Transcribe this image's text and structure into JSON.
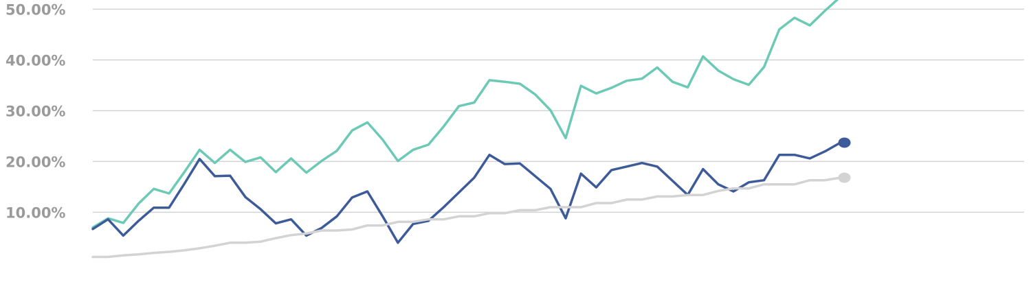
{
  "chart_data": {
    "type": "line",
    "title": "",
    "xlabel": "",
    "ylabel": "",
    "ylim": [
      -6.3,
      51.8
    ],
    "xlim": [
      0,
      61.5
    ],
    "grid": true,
    "y_ticks": [
      {
        "value": 10,
        "label": "10.00%"
      },
      {
        "value": 20,
        "label": "20.00%"
      },
      {
        "value": 30,
        "label": "30.00%"
      },
      {
        "value": 40,
        "label": "40.00%"
      },
      {
        "value": 50,
        "label": "50.00%"
      }
    ],
    "series": [
      {
        "color": "#6cc9b6",
        "end_marker": false,
        "points": [
          [
            0,
            7.0
          ],
          [
            1,
            8.8
          ],
          [
            2,
            7.9
          ],
          [
            3,
            11.7
          ],
          [
            4,
            14.6
          ],
          [
            5,
            13.7
          ],
          [
            6,
            17.9
          ],
          [
            7,
            22.3
          ],
          [
            8,
            19.7
          ],
          [
            9,
            22.3
          ],
          [
            10,
            19.9
          ],
          [
            11,
            20.8
          ],
          [
            12,
            17.9
          ],
          [
            13,
            20.6
          ],
          [
            14,
            17.8
          ],
          [
            15,
            20.1
          ],
          [
            16,
            22.1
          ],
          [
            17,
            26.1
          ],
          [
            18,
            27.7
          ],
          [
            19,
            24.3
          ],
          [
            20,
            20.1
          ],
          [
            21,
            22.3
          ],
          [
            22,
            23.3
          ],
          [
            23,
            26.9
          ],
          [
            24,
            30.9
          ],
          [
            25,
            31.6
          ],
          [
            26,
            36.0
          ],
          [
            27,
            35.7
          ],
          [
            28,
            35.3
          ],
          [
            29,
            33.2
          ],
          [
            30,
            30.1
          ],
          [
            31,
            24.6
          ],
          [
            32,
            34.9
          ],
          [
            33,
            33.4
          ],
          [
            34,
            34.5
          ],
          [
            35,
            35.9
          ],
          [
            36,
            36.3
          ],
          [
            37,
            38.5
          ],
          [
            38,
            35.7
          ],
          [
            39,
            34.6
          ],
          [
            40,
            40.7
          ],
          [
            41,
            37.9
          ],
          [
            42,
            36.2
          ],
          [
            43,
            35.1
          ],
          [
            44,
            38.6
          ],
          [
            45,
            46.0
          ],
          [
            46,
            48.3
          ],
          [
            47,
            46.8
          ],
          [
            48,
            49.7
          ],
          [
            49,
            52.4
          ]
        ]
      },
      {
        "color": "#3d5a99",
        "end_marker": true,
        "points": [
          [
            0,
            6.7
          ],
          [
            1,
            8.6
          ],
          [
            2,
            5.4
          ],
          [
            3,
            8.3
          ],
          [
            4,
            10.9
          ],
          [
            5,
            10.9
          ],
          [
            6,
            15.6
          ],
          [
            7,
            20.5
          ],
          [
            8,
            17.1
          ],
          [
            9,
            17.2
          ],
          [
            10,
            13.0
          ],
          [
            11,
            10.6
          ],
          [
            12,
            7.8
          ],
          [
            13,
            8.6
          ],
          [
            14,
            5.4
          ],
          [
            15,
            6.9
          ],
          [
            16,
            9.2
          ],
          [
            17,
            12.9
          ],
          [
            18,
            14.1
          ],
          [
            19,
            9.2
          ],
          [
            20,
            4.0
          ],
          [
            21,
            7.7
          ],
          [
            22,
            8.3
          ],
          [
            23,
            11.0
          ],
          [
            24,
            13.9
          ],
          [
            25,
            16.8
          ],
          [
            26,
            21.3
          ],
          [
            27,
            19.5
          ],
          [
            28,
            19.6
          ],
          [
            29,
            17.1
          ],
          [
            30,
            14.6
          ],
          [
            31,
            8.8
          ],
          [
            32,
            17.6
          ],
          [
            33,
            14.9
          ],
          [
            34,
            18.3
          ],
          [
            35,
            19.0
          ],
          [
            36,
            19.7
          ],
          [
            37,
            19.0
          ],
          [
            38,
            16.2
          ],
          [
            39,
            13.4
          ],
          [
            40,
            18.5
          ],
          [
            41,
            15.5
          ],
          [
            42,
            14.1
          ],
          [
            43,
            15.9
          ],
          [
            44,
            16.3
          ],
          [
            45,
            21.3
          ],
          [
            46,
            21.3
          ],
          [
            47,
            20.6
          ],
          [
            48,
            22.0
          ],
          [
            49,
            23.7
          ]
        ]
      },
      {
        "color": "#d3d3d3",
        "end_marker": true,
        "points": [
          [
            0,
            1.2
          ],
          [
            1,
            1.2
          ],
          [
            2,
            1.5
          ],
          [
            3,
            1.7
          ],
          [
            4,
            2.0
          ],
          [
            5,
            2.2
          ],
          [
            6,
            2.5
          ],
          [
            7,
            2.9
          ],
          [
            8,
            3.4
          ],
          [
            9,
            4.0
          ],
          [
            10,
            4.0
          ],
          [
            11,
            4.2
          ],
          [
            12,
            4.9
          ],
          [
            13,
            5.5
          ],
          [
            14,
            5.8
          ],
          [
            15,
            6.4
          ],
          [
            16,
            6.4
          ],
          [
            17,
            6.6
          ],
          [
            18,
            7.4
          ],
          [
            19,
            7.4
          ],
          [
            20,
            8.1
          ],
          [
            21,
            8.1
          ],
          [
            22,
            8.6
          ],
          [
            23,
            8.6
          ],
          [
            24,
            9.2
          ],
          [
            25,
            9.2
          ],
          [
            26,
            9.8
          ],
          [
            27,
            9.8
          ],
          [
            28,
            10.4
          ],
          [
            29,
            10.4
          ],
          [
            30,
            11.0
          ],
          [
            31,
            11.0
          ],
          [
            32,
            11.0
          ],
          [
            33,
            11.8
          ],
          [
            34,
            11.8
          ],
          [
            35,
            12.5
          ],
          [
            36,
            12.5
          ],
          [
            37,
            13.1
          ],
          [
            38,
            13.1
          ],
          [
            39,
            13.4
          ],
          [
            40,
            13.4
          ],
          [
            41,
            14.2
          ],
          [
            42,
            14.7
          ],
          [
            43,
            14.7
          ],
          [
            44,
            15.5
          ],
          [
            45,
            15.5
          ],
          [
            46,
            15.5
          ],
          [
            47,
            16.3
          ],
          [
            48,
            16.3
          ],
          [
            49,
            16.8
          ]
        ]
      }
    ]
  }
}
